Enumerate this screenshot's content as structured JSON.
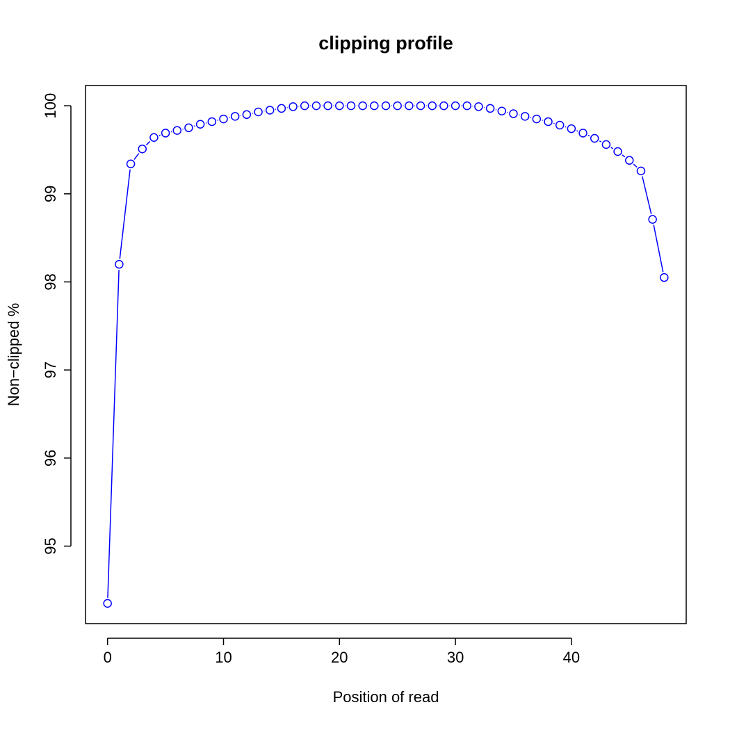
{
  "chart_data": {
    "type": "line",
    "title": "clipping profile",
    "xlabel": "Position of read",
    "ylabel": "Non−clipped %",
    "xlim": [
      -1.9,
      49.9
    ],
    "ylim": [
      94.12,
      100.23
    ],
    "x_ticks": [
      0,
      10,
      20,
      30,
      40
    ],
    "y_ticks": [
      95,
      96,
      97,
      98,
      99,
      100
    ],
    "grid": false,
    "legend": "none",
    "markers": "open-circle",
    "colors": {
      "series": "#0000ff",
      "axes": "#000000"
    },
    "series": [
      {
        "x": [
          0,
          1,
          2,
          3,
          4,
          5,
          6,
          7,
          8,
          9,
          10,
          11,
          12,
          13,
          14,
          15,
          16,
          17,
          18,
          19,
          20,
          21,
          22,
          23,
          24,
          25,
          26,
          27,
          28,
          29,
          30,
          31,
          32,
          33,
          34,
          35,
          36,
          37,
          38,
          39,
          40,
          41,
          42,
          43,
          44,
          45,
          46,
          47,
          48
        ],
        "values": [
          94.35,
          98.2,
          99.34,
          99.51,
          99.64,
          99.69,
          99.72,
          99.75,
          99.79,
          99.82,
          99.85,
          99.88,
          99.9,
          99.93,
          99.95,
          99.97,
          99.99,
          100.0,
          100.0,
          100.0,
          100.0,
          100.0,
          100.0,
          100.0,
          100.0,
          100.0,
          100.0,
          100.0,
          100.0,
          100.0,
          100.0,
          100.0,
          99.99,
          99.97,
          99.94,
          99.91,
          99.88,
          99.85,
          99.82,
          99.78,
          99.74,
          99.69,
          99.63,
          99.56,
          99.48,
          99.38,
          99.26,
          98.71,
          98.05
        ]
      }
    ]
  }
}
